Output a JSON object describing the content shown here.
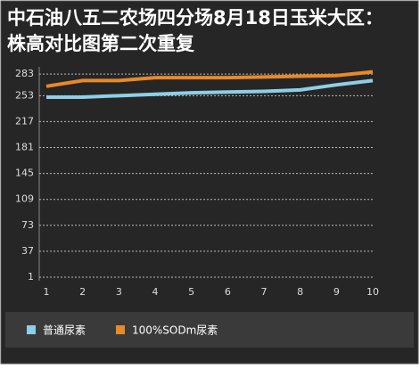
{
  "chart_data": {
    "type": "line",
    "title": "中石油八五二农场四分场8月18日玉米大区：株高对比图第二次重复",
    "categories": [
      "1",
      "2",
      "3",
      "4",
      "5",
      "6",
      "7",
      "8",
      "9",
      "10"
    ],
    "series": [
      {
        "name": "普通尿素",
        "color": "#8ecfe8",
        "values": [
          251,
          251,
          253,
          255,
          257,
          258,
          259,
          261,
          268,
          274
        ]
      },
      {
        "name": "100%SODm尿素",
        "color": "#e8892a",
        "values": [
          266,
          274,
          274,
          278,
          278,
          278,
          279,
          280,
          281,
          286
        ]
      }
    ],
    "ylim": [
      1,
      293
    ],
    "yticks": [
      1,
      37,
      73,
      109,
      145,
      181,
      217,
      253,
      283
    ],
    "grid": true
  }
}
